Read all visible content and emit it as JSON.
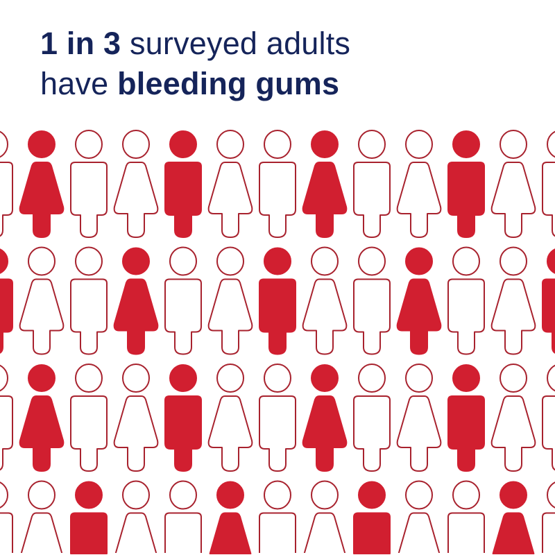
{
  "headline": {
    "line1_bold": "1 in 3",
    "line1_rest": " surveyed adults",
    "line2_start": "have ",
    "line2_bold": "bleeding gums"
  },
  "colors": {
    "headline": "#15245a",
    "highlight": "#d11f30",
    "outline": "#a8222e",
    "background": "#ffffff"
  },
  "pictogram": {
    "rows": [
      {
        "figures": [
          "man",
          "woman",
          "man",
          "woman",
          "man",
          "woman",
          "man",
          "woman",
          "man",
          "woman",
          "man",
          "woman",
          "man"
        ],
        "highlighted": [
          1,
          4,
          7,
          10
        ]
      },
      {
        "figures": [
          "man",
          "woman",
          "man",
          "woman",
          "man",
          "woman",
          "man",
          "woman",
          "man",
          "woman",
          "man",
          "woman",
          "man"
        ],
        "highlighted": [
          0,
          3,
          6,
          9,
          12
        ]
      },
      {
        "figures": [
          "man",
          "woman",
          "man",
          "woman",
          "man",
          "woman",
          "man",
          "woman",
          "man",
          "woman",
          "man",
          "woman",
          "man"
        ],
        "highlighted": [
          1,
          4,
          7,
          10
        ]
      },
      {
        "figures": [
          "man",
          "woman",
          "man",
          "woman",
          "man",
          "woman",
          "man",
          "woman",
          "man",
          "woman",
          "man",
          "woman",
          "man"
        ],
        "highlighted": [
          2,
          5,
          8,
          11
        ]
      }
    ]
  }
}
